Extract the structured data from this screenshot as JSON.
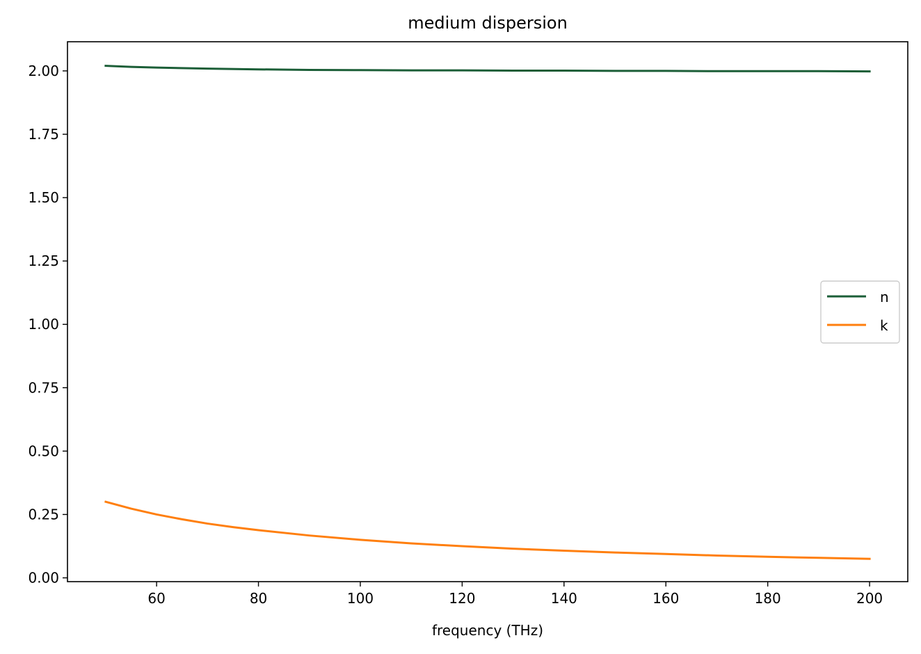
{
  "chart_data": {
    "type": "line",
    "title": "medium dispersion",
    "xlabel": "frequency (THz)",
    "ylabel": "",
    "xlim": [
      42.5,
      207.5
    ],
    "ylim": [
      -0.015,
      2.115
    ],
    "xticks": [
      60,
      80,
      100,
      120,
      140,
      160,
      180,
      200
    ],
    "xtick_labels": [
      "60",
      "80",
      "100",
      "120",
      "140",
      "160",
      "180",
      "200"
    ],
    "yticks": [
      0.0,
      0.25,
      0.5,
      0.75,
      1.0,
      1.25,
      1.5,
      1.75,
      2.0
    ],
    "ytick_labels": [
      "0.00",
      "0.25",
      "0.50",
      "0.75",
      "1.00",
      "1.25",
      "1.50",
      "1.75",
      "2.00"
    ],
    "grid": false,
    "legend_position": "center-right",
    "series": [
      {
        "name": "n",
        "color": "#1b5e37",
        "x": [
          50,
          55,
          60,
          70,
          80,
          90,
          100,
          110,
          120,
          130,
          140,
          150,
          160,
          170,
          180,
          190,
          200
        ],
        "y": [
          2.02,
          2.016,
          2.013,
          2.009,
          2.006,
          2.004,
          2.003,
          2.002,
          2.002,
          2.001,
          2.001,
          2.0,
          2.0,
          1.999,
          1.999,
          1.999,
          1.998
        ]
      },
      {
        "name": "k",
        "color": "#ff7f0e",
        "x": [
          50,
          55,
          60,
          65,
          70,
          75,
          80,
          90,
          100,
          110,
          120,
          130,
          140,
          150,
          160,
          170,
          180,
          190,
          200
        ],
        "y": [
          0.3,
          0.273,
          0.25,
          0.231,
          0.214,
          0.2,
          0.188,
          0.167,
          0.15,
          0.136,
          0.125,
          0.115,
          0.107,
          0.1,
          0.094,
          0.088,
          0.083,
          0.079,
          0.075
        ]
      }
    ]
  }
}
